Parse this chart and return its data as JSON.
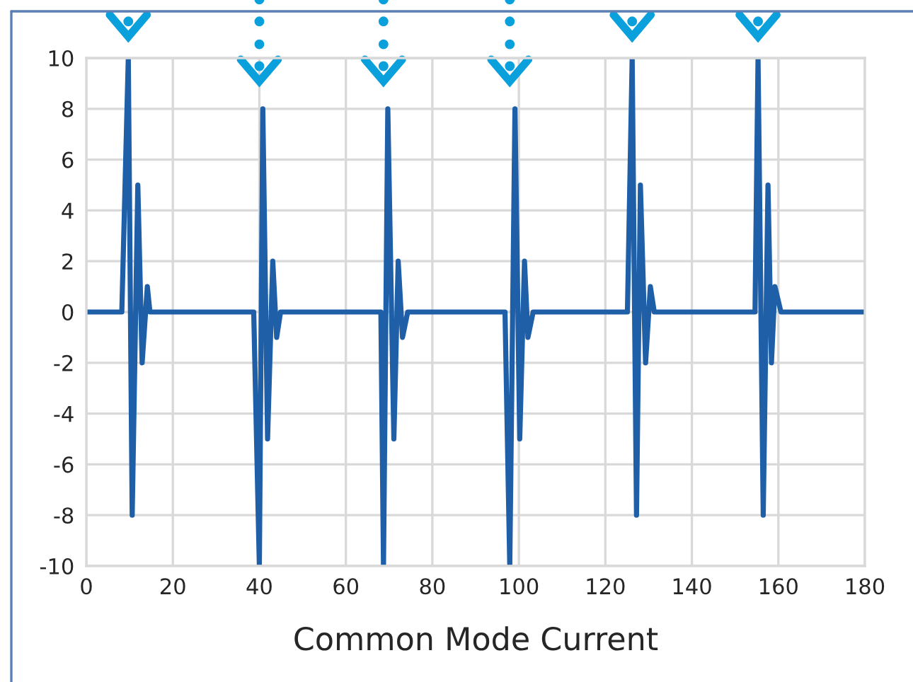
{
  "chart_data": {
    "type": "line",
    "xlabel": "Common Mode Current",
    "x": [
      0,
      8.2,
      9.7,
      10.6,
      11.9,
      12.9,
      14.1,
      14.7,
      38.7,
      40.0,
      40.8,
      41.9,
      43.1,
      44.0,
      44.9,
      68.1,
      68.7,
      69.7,
      71.1,
      72.1,
      73.1,
      74.3,
      96.8,
      97.9,
      99.1,
      100.2,
      101.3,
      102.1,
      103.3,
      125.1,
      126.2,
      127.2,
      128.1,
      129.3,
      130.4,
      131.3,
      154.6,
      155.3,
      156.5,
      157.6,
      158.4,
      159.2,
      160.6,
      180
    ],
    "series": [
      {
        "color": "#1f5fa8",
        "values": [
          0,
          0,
          10,
          -8,
          5,
          -2,
          1,
          0,
          0,
          -10,
          8,
          -5,
          2,
          -1,
          0,
          0,
          -10,
          8,
          -5,
          2,
          -1,
          0,
          0,
          -10,
          8,
          -5,
          2,
          -1,
          0,
          0,
          10,
          -8,
          5,
          -2,
          1,
          0,
          0,
          10,
          -8,
          5,
          -2,
          1,
          0,
          0
        ]
      }
    ],
    "xlim": [
      0,
      180
    ],
    "xticks": [
      0,
      20,
      40,
      60,
      80,
      100,
      120,
      140,
      160,
      180
    ],
    "ylim": [
      -10,
      10
    ],
    "yticks": [
      -10,
      -8,
      -6,
      -4,
      -2,
      0,
      2,
      4,
      6,
      8,
      10
    ],
    "grid": true,
    "legend": false,
    "marker": "none",
    "line_style": "solid"
  }
}
